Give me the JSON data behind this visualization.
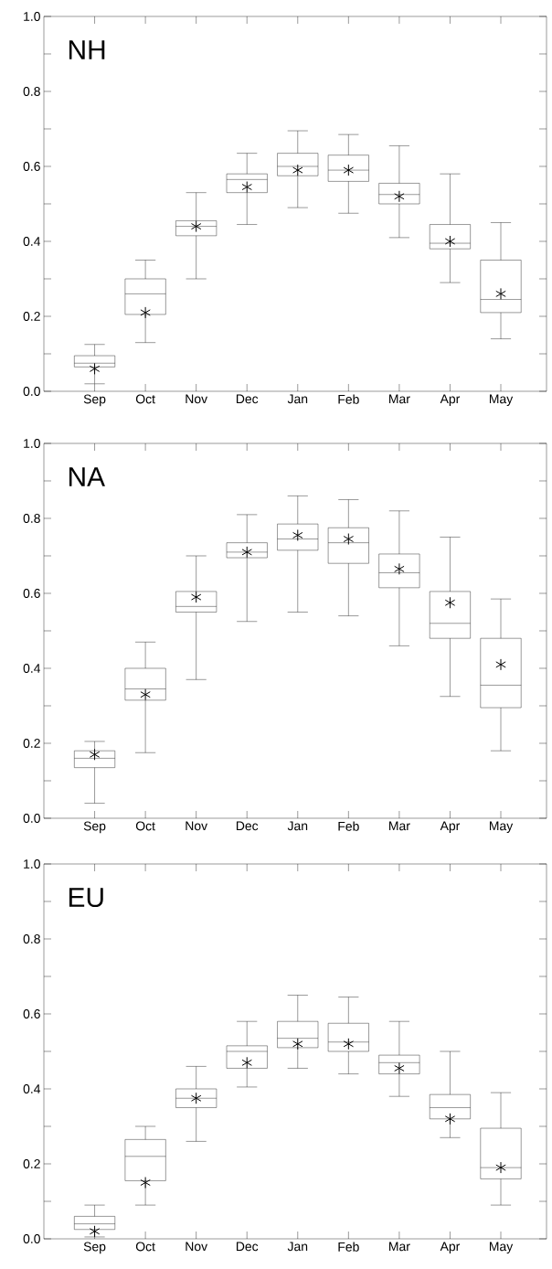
{
  "chart_data": [
    {
      "type": "box",
      "title": "NH",
      "categories": [
        "Sep",
        "Oct",
        "Nov",
        "Dec",
        "Jan",
        "Feb",
        "Mar",
        "Apr",
        "May"
      ],
      "marker": "star",
      "ylim": [
        0,
        1
      ],
      "yticks": [
        {
          "value": 0,
          "label": "0.0"
        },
        {
          "value": 0.1,
          "label": null
        },
        {
          "value": 0.2,
          "label": "0.2"
        },
        {
          "value": 0.3,
          "label": null
        },
        {
          "value": 0.4,
          "label": "0.4"
        },
        {
          "value": 0.5,
          "label": null
        },
        {
          "value": 0.6,
          "label": "0.6"
        },
        {
          "value": 0.7,
          "label": null
        },
        {
          "value": 0.8,
          "label": "0.8"
        },
        {
          "value": 0.9,
          "label": null
        },
        {
          "value": 1,
          "label": "1.0"
        }
      ],
      "boxes": [
        {
          "low": 0.02,
          "q1": 0.065,
          "median": 0.075,
          "q3": 0.095,
          "high": 0.125,
          "mean": 0.06
        },
        {
          "low": 0.13,
          "q1": 0.205,
          "median": 0.26,
          "q3": 0.3,
          "high": 0.35,
          "mean": 0.21
        },
        {
          "low": 0.3,
          "q1": 0.415,
          "median": 0.44,
          "q3": 0.455,
          "high": 0.53,
          "mean": 0.44
        },
        {
          "low": 0.445,
          "q1": 0.53,
          "median": 0.565,
          "q3": 0.58,
          "high": 0.635,
          "mean": 0.545
        },
        {
          "low": 0.49,
          "q1": 0.575,
          "median": 0.6,
          "q3": 0.635,
          "high": 0.695,
          "mean": 0.59
        },
        {
          "low": 0.475,
          "q1": 0.56,
          "median": 0.59,
          "q3": 0.63,
          "high": 0.685,
          "mean": 0.59
        },
        {
          "low": 0.41,
          "q1": 0.5,
          "median": 0.525,
          "q3": 0.555,
          "high": 0.655,
          "mean": 0.52
        },
        {
          "low": 0.29,
          "q1": 0.38,
          "median": 0.395,
          "q3": 0.445,
          "high": 0.58,
          "mean": 0.4
        },
        {
          "low": 0.14,
          "q1": 0.21,
          "median": 0.245,
          "q3": 0.35,
          "high": 0.45,
          "mean": 0.26
        }
      ]
    },
    {
      "type": "box",
      "title": "NA",
      "categories": [
        "Sep",
        "Oct",
        "Nov",
        "Dec",
        "Jan",
        "Feb",
        "Mar",
        "Apr",
        "May"
      ],
      "marker": "star",
      "ylim": [
        0,
        1
      ],
      "yticks": [
        {
          "value": 0,
          "label": "0.0"
        },
        {
          "value": 0.1,
          "label": null
        },
        {
          "value": 0.2,
          "label": "0.2"
        },
        {
          "value": 0.3,
          "label": null
        },
        {
          "value": 0.4,
          "label": "0.4"
        },
        {
          "value": 0.5,
          "label": null
        },
        {
          "value": 0.6,
          "label": "0.6"
        },
        {
          "value": 0.7,
          "label": null
        },
        {
          "value": 0.8,
          "label": "0.8"
        },
        {
          "value": 0.9,
          "label": null
        },
        {
          "value": 1,
          "label": "1.0"
        }
      ],
      "boxes": [
        {
          "low": 0.04,
          "q1": 0.135,
          "median": 0.16,
          "q3": 0.18,
          "high": 0.205,
          "mean": 0.17
        },
        {
          "low": 0.175,
          "q1": 0.315,
          "median": 0.345,
          "q3": 0.4,
          "high": 0.47,
          "mean": 0.33
        },
        {
          "low": 0.37,
          "q1": 0.55,
          "median": 0.565,
          "q3": 0.605,
          "high": 0.7,
          "mean": 0.59
        },
        {
          "low": 0.525,
          "q1": 0.695,
          "median": 0.71,
          "q3": 0.735,
          "high": 0.81,
          "mean": 0.71
        },
        {
          "low": 0.55,
          "q1": 0.715,
          "median": 0.745,
          "q3": 0.785,
          "high": 0.86,
          "mean": 0.755
        },
        {
          "low": 0.54,
          "q1": 0.68,
          "median": 0.735,
          "q3": 0.775,
          "high": 0.85,
          "mean": 0.745
        },
        {
          "low": 0.46,
          "q1": 0.615,
          "median": 0.655,
          "q3": 0.705,
          "high": 0.82,
          "mean": 0.665
        },
        {
          "low": 0.325,
          "q1": 0.48,
          "median": 0.52,
          "q3": 0.605,
          "high": 0.75,
          "mean": 0.575
        },
        {
          "low": 0.18,
          "q1": 0.295,
          "median": 0.355,
          "q3": 0.48,
          "high": 0.585,
          "mean": 0.41
        }
      ]
    },
    {
      "type": "box",
      "title": "EU",
      "categories": [
        "Sep",
        "Oct",
        "Nov",
        "Dec",
        "Jan",
        "Feb",
        "Mar",
        "Apr",
        "May"
      ],
      "marker": "star",
      "ylim": [
        0,
        1
      ],
      "yticks": [
        {
          "value": 0,
          "label": "0.0"
        },
        {
          "value": 0.1,
          "label": null
        },
        {
          "value": 0.2,
          "label": "0.2"
        },
        {
          "value": 0.3,
          "label": null
        },
        {
          "value": 0.4,
          "label": "0.4"
        },
        {
          "value": 0.5,
          "label": null
        },
        {
          "value": 0.6,
          "label": "0.6"
        },
        {
          "value": 0.7,
          "label": null
        },
        {
          "value": 0.8,
          "label": "0.8"
        },
        {
          "value": 0.9,
          "label": null
        },
        {
          "value": 1,
          "label": "1.0"
        }
      ],
      "boxes": [
        {
          "low": 0.005,
          "q1": 0.025,
          "median": 0.04,
          "q3": 0.06,
          "high": 0.09,
          "mean": 0.02
        },
        {
          "low": 0.09,
          "q1": 0.155,
          "median": 0.22,
          "q3": 0.265,
          "high": 0.3,
          "mean": 0.15
        },
        {
          "low": 0.26,
          "q1": 0.35,
          "median": 0.375,
          "q3": 0.4,
          "high": 0.46,
          "mean": 0.375
        },
        {
          "low": 0.405,
          "q1": 0.455,
          "median": 0.5,
          "q3": 0.515,
          "high": 0.58,
          "mean": 0.47
        },
        {
          "low": 0.455,
          "q1": 0.51,
          "median": 0.535,
          "q3": 0.58,
          "high": 0.65,
          "mean": 0.52
        },
        {
          "low": 0.44,
          "q1": 0.5,
          "median": 0.525,
          "q3": 0.575,
          "high": 0.645,
          "mean": 0.52
        },
        {
          "low": 0.38,
          "q1": 0.44,
          "median": 0.47,
          "q3": 0.49,
          "high": 0.58,
          "mean": 0.455
        },
        {
          "low": 0.27,
          "q1": 0.32,
          "median": 0.35,
          "q3": 0.385,
          "high": 0.5,
          "mean": 0.32
        },
        {
          "low": 0.09,
          "q1": 0.16,
          "median": 0.19,
          "q3": 0.295,
          "high": 0.39,
          "mean": 0.19
        }
      ]
    }
  ]
}
